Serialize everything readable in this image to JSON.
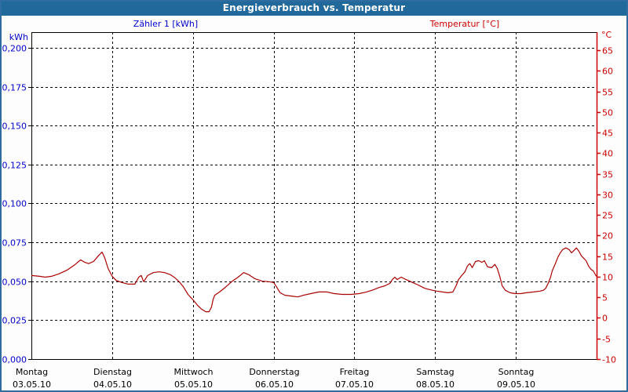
{
  "header": {
    "title": "Energieverbrauch vs. Temperatur"
  },
  "chart_data": {
    "type": "line",
    "title": "Energieverbrauch vs. Temperatur",
    "legend_position": "top",
    "grid": "dashed",
    "x_axis": {
      "range": [
        0,
        7
      ],
      "days": [
        {
          "name": "Montag",
          "date": "03.05.10"
        },
        {
          "name": "Dienstag",
          "date": "04.05.10"
        },
        {
          "name": "Mittwoch",
          "date": "05.05.10"
        },
        {
          "name": "Donnerstag",
          "date": "06.05.10"
        },
        {
          "name": "Freitag",
          "date": "07.05.10"
        },
        {
          "name": "Samstag",
          "date": "08.05.10"
        },
        {
          "name": "Sonntag",
          "date": "09.05.10"
        }
      ]
    },
    "left_axis": {
      "unit": "kWh",
      "color": "#0000cc",
      "range": [
        0,
        0.21
      ],
      "ticks": [
        {
          "v": 0.2,
          "label": "0,200"
        },
        {
          "v": 0.175,
          "label": "0,175"
        },
        {
          "v": 0.15,
          "label": "0,150"
        },
        {
          "v": 0.125,
          "label": "0,125"
        },
        {
          "v": 0.1,
          "label": "0,100"
        },
        {
          "v": 0.075,
          "label": "0,075"
        },
        {
          "v": 0.05,
          "label": "0,050"
        },
        {
          "v": 0.025,
          "label": "0,025"
        },
        {
          "v": 0.0,
          "label": "0,000"
        }
      ]
    },
    "right_axis": {
      "unit": "°C",
      "color": "#cc0000",
      "range": [
        -10,
        69.4
      ],
      "tick_values": [
        65,
        60,
        55,
        50,
        45,
        40,
        35,
        30,
        25,
        20,
        15,
        10,
        5,
        0,
        -5,
        -10
      ]
    },
    "series": [
      {
        "name": "Zähler 1 [kWh]",
        "axis": "left",
        "color": "#0000cc",
        "points": []
      },
      {
        "name": "Temperatur [°C]",
        "axis": "right",
        "color": "#aa0000",
        "points": [
          [
            0.0,
            10.3
          ],
          [
            0.1,
            10.1
          ],
          [
            0.17,
            9.9
          ],
          [
            0.25,
            10.1
          ],
          [
            0.34,
            10.7
          ],
          [
            0.44,
            11.6
          ],
          [
            0.53,
            12.8
          ],
          [
            0.61,
            14.1
          ],
          [
            0.66,
            13.5
          ],
          [
            0.71,
            13.2
          ],
          [
            0.77,
            13.7
          ],
          [
            0.83,
            15.1
          ],
          [
            0.875,
            16.0
          ],
          [
            0.91,
            14.5
          ],
          [
            0.95,
            12.0
          ],
          [
            1.0,
            10.1
          ],
          [
            1.05,
            9.1
          ],
          [
            1.12,
            8.6
          ],
          [
            1.2,
            8.2
          ],
          [
            1.28,
            8.2
          ],
          [
            1.33,
            9.9
          ],
          [
            1.36,
            10.3
          ],
          [
            1.39,
            8.8
          ],
          [
            1.44,
            10.3
          ],
          [
            1.51,
            11.0
          ],
          [
            1.58,
            11.2
          ],
          [
            1.65,
            11.0
          ],
          [
            1.72,
            10.5
          ],
          [
            1.78,
            9.7
          ],
          [
            1.83,
            8.8
          ],
          [
            1.88,
            7.6
          ],
          [
            1.94,
            5.7
          ],
          [
            2.01,
            4.2
          ],
          [
            2.06,
            3.0
          ],
          [
            2.11,
            2.1
          ],
          [
            2.16,
            1.5
          ],
          [
            2.2,
            1.5
          ],
          [
            2.23,
            2.6
          ],
          [
            2.25,
            4.4
          ],
          [
            2.27,
            5.5
          ],
          [
            2.33,
            6.3
          ],
          [
            2.4,
            7.4
          ],
          [
            2.48,
            8.8
          ],
          [
            2.56,
            9.9
          ],
          [
            2.63,
            11.0
          ],
          [
            2.69,
            10.5
          ],
          [
            2.77,
            9.5
          ],
          [
            2.86,
            8.9
          ],
          [
            2.94,
            8.8
          ],
          [
            3.0,
            8.6
          ],
          [
            3.04,
            7.4
          ],
          [
            3.08,
            6.1
          ],
          [
            3.14,
            5.5
          ],
          [
            3.22,
            5.3
          ],
          [
            3.3,
            5.1
          ],
          [
            3.37,
            5.5
          ],
          [
            3.46,
            5.9
          ],
          [
            3.56,
            6.3
          ],
          [
            3.66,
            6.3
          ],
          [
            3.75,
            5.9
          ],
          [
            3.85,
            5.7
          ],
          [
            3.96,
            5.7
          ],
          [
            4.06,
            5.9
          ],
          [
            4.15,
            6.3
          ],
          [
            4.23,
            6.8
          ],
          [
            4.31,
            7.4
          ],
          [
            4.38,
            7.8
          ],
          [
            4.44,
            8.4
          ],
          [
            4.47,
            9.3
          ],
          [
            4.5,
            9.9
          ],
          [
            4.53,
            9.3
          ],
          [
            4.58,
            9.9
          ],
          [
            4.64,
            9.3
          ],
          [
            4.72,
            8.6
          ],
          [
            4.79,
            8.0
          ],
          [
            4.87,
            7.2
          ],
          [
            4.95,
            6.8
          ],
          [
            5.02,
            6.5
          ],
          [
            5.09,
            6.3
          ],
          [
            5.16,
            6.1
          ],
          [
            5.22,
            6.3
          ],
          [
            5.26,
            7.8
          ],
          [
            5.29,
            9.3
          ],
          [
            5.33,
            10.3
          ],
          [
            5.37,
            11.2
          ],
          [
            5.4,
            12.6
          ],
          [
            5.43,
            13.2
          ],
          [
            5.46,
            12.2
          ],
          [
            5.5,
            13.7
          ],
          [
            5.54,
            13.9
          ],
          [
            5.58,
            13.5
          ],
          [
            5.61,
            13.9
          ],
          [
            5.65,
            12.4
          ],
          [
            5.7,
            12.2
          ],
          [
            5.74,
            13.0
          ],
          [
            5.77,
            12.0
          ],
          [
            5.8,
            10.1
          ],
          [
            5.83,
            7.8
          ],
          [
            5.87,
            6.7
          ],
          [
            5.93,
            6.1
          ],
          [
            5.99,
            5.9
          ],
          [
            6.06,
            5.9
          ],
          [
            6.13,
            6.1
          ],
          [
            6.22,
            6.3
          ],
          [
            6.3,
            6.5
          ],
          [
            6.34,
            6.7
          ],
          [
            6.37,
            7.2
          ],
          [
            6.4,
            8.4
          ],
          [
            6.43,
            9.9
          ],
          [
            6.45,
            11.4
          ],
          [
            6.49,
            13.2
          ],
          [
            6.52,
            14.7
          ],
          [
            6.55,
            15.8
          ],
          [
            6.58,
            16.6
          ],
          [
            6.62,
            17.0
          ],
          [
            6.66,
            16.6
          ],
          [
            6.69,
            15.8
          ],
          [
            6.72,
            16.4
          ],
          [
            6.75,
            17.0
          ],
          [
            6.78,
            16.2
          ],
          [
            6.81,
            15.1
          ],
          [
            6.87,
            13.9
          ],
          [
            6.9,
            12.6
          ],
          [
            6.93,
            11.8
          ],
          [
            6.96,
            11.4
          ],
          [
            6.99,
            10.3
          ],
          [
            7.0,
            10.1
          ]
        ]
      }
    ],
    "colors": {
      "titlebar": "#21689b",
      "frame": "#2f6da0",
      "grid": "#000000",
      "left_text": "#0000cc",
      "right_text": "#cc0000",
      "curve": "#aa0000",
      "day_text": "#000000"
    }
  }
}
